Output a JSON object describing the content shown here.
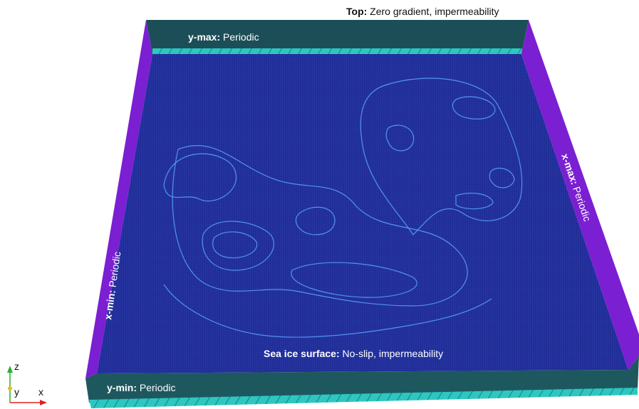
{
  "labels": {
    "top": {
      "key": "Top:",
      "text": "Zero gradient, impermeability"
    },
    "y_max": {
      "key": "y-max:",
      "text": "Periodic"
    },
    "x_max": {
      "key": "x-max:",
      "text": "Periodic"
    },
    "x_min": {
      "key": "x-min:",
      "text": "Periodic"
    },
    "surface": {
      "key": "Sea ice surface:",
      "text": "No-slip, impermeability"
    },
    "y_min": {
      "key": "y-min:",
      "text": "Periodic"
    }
  },
  "axes": {
    "z": "z",
    "y": "y",
    "x": "x"
  }
}
